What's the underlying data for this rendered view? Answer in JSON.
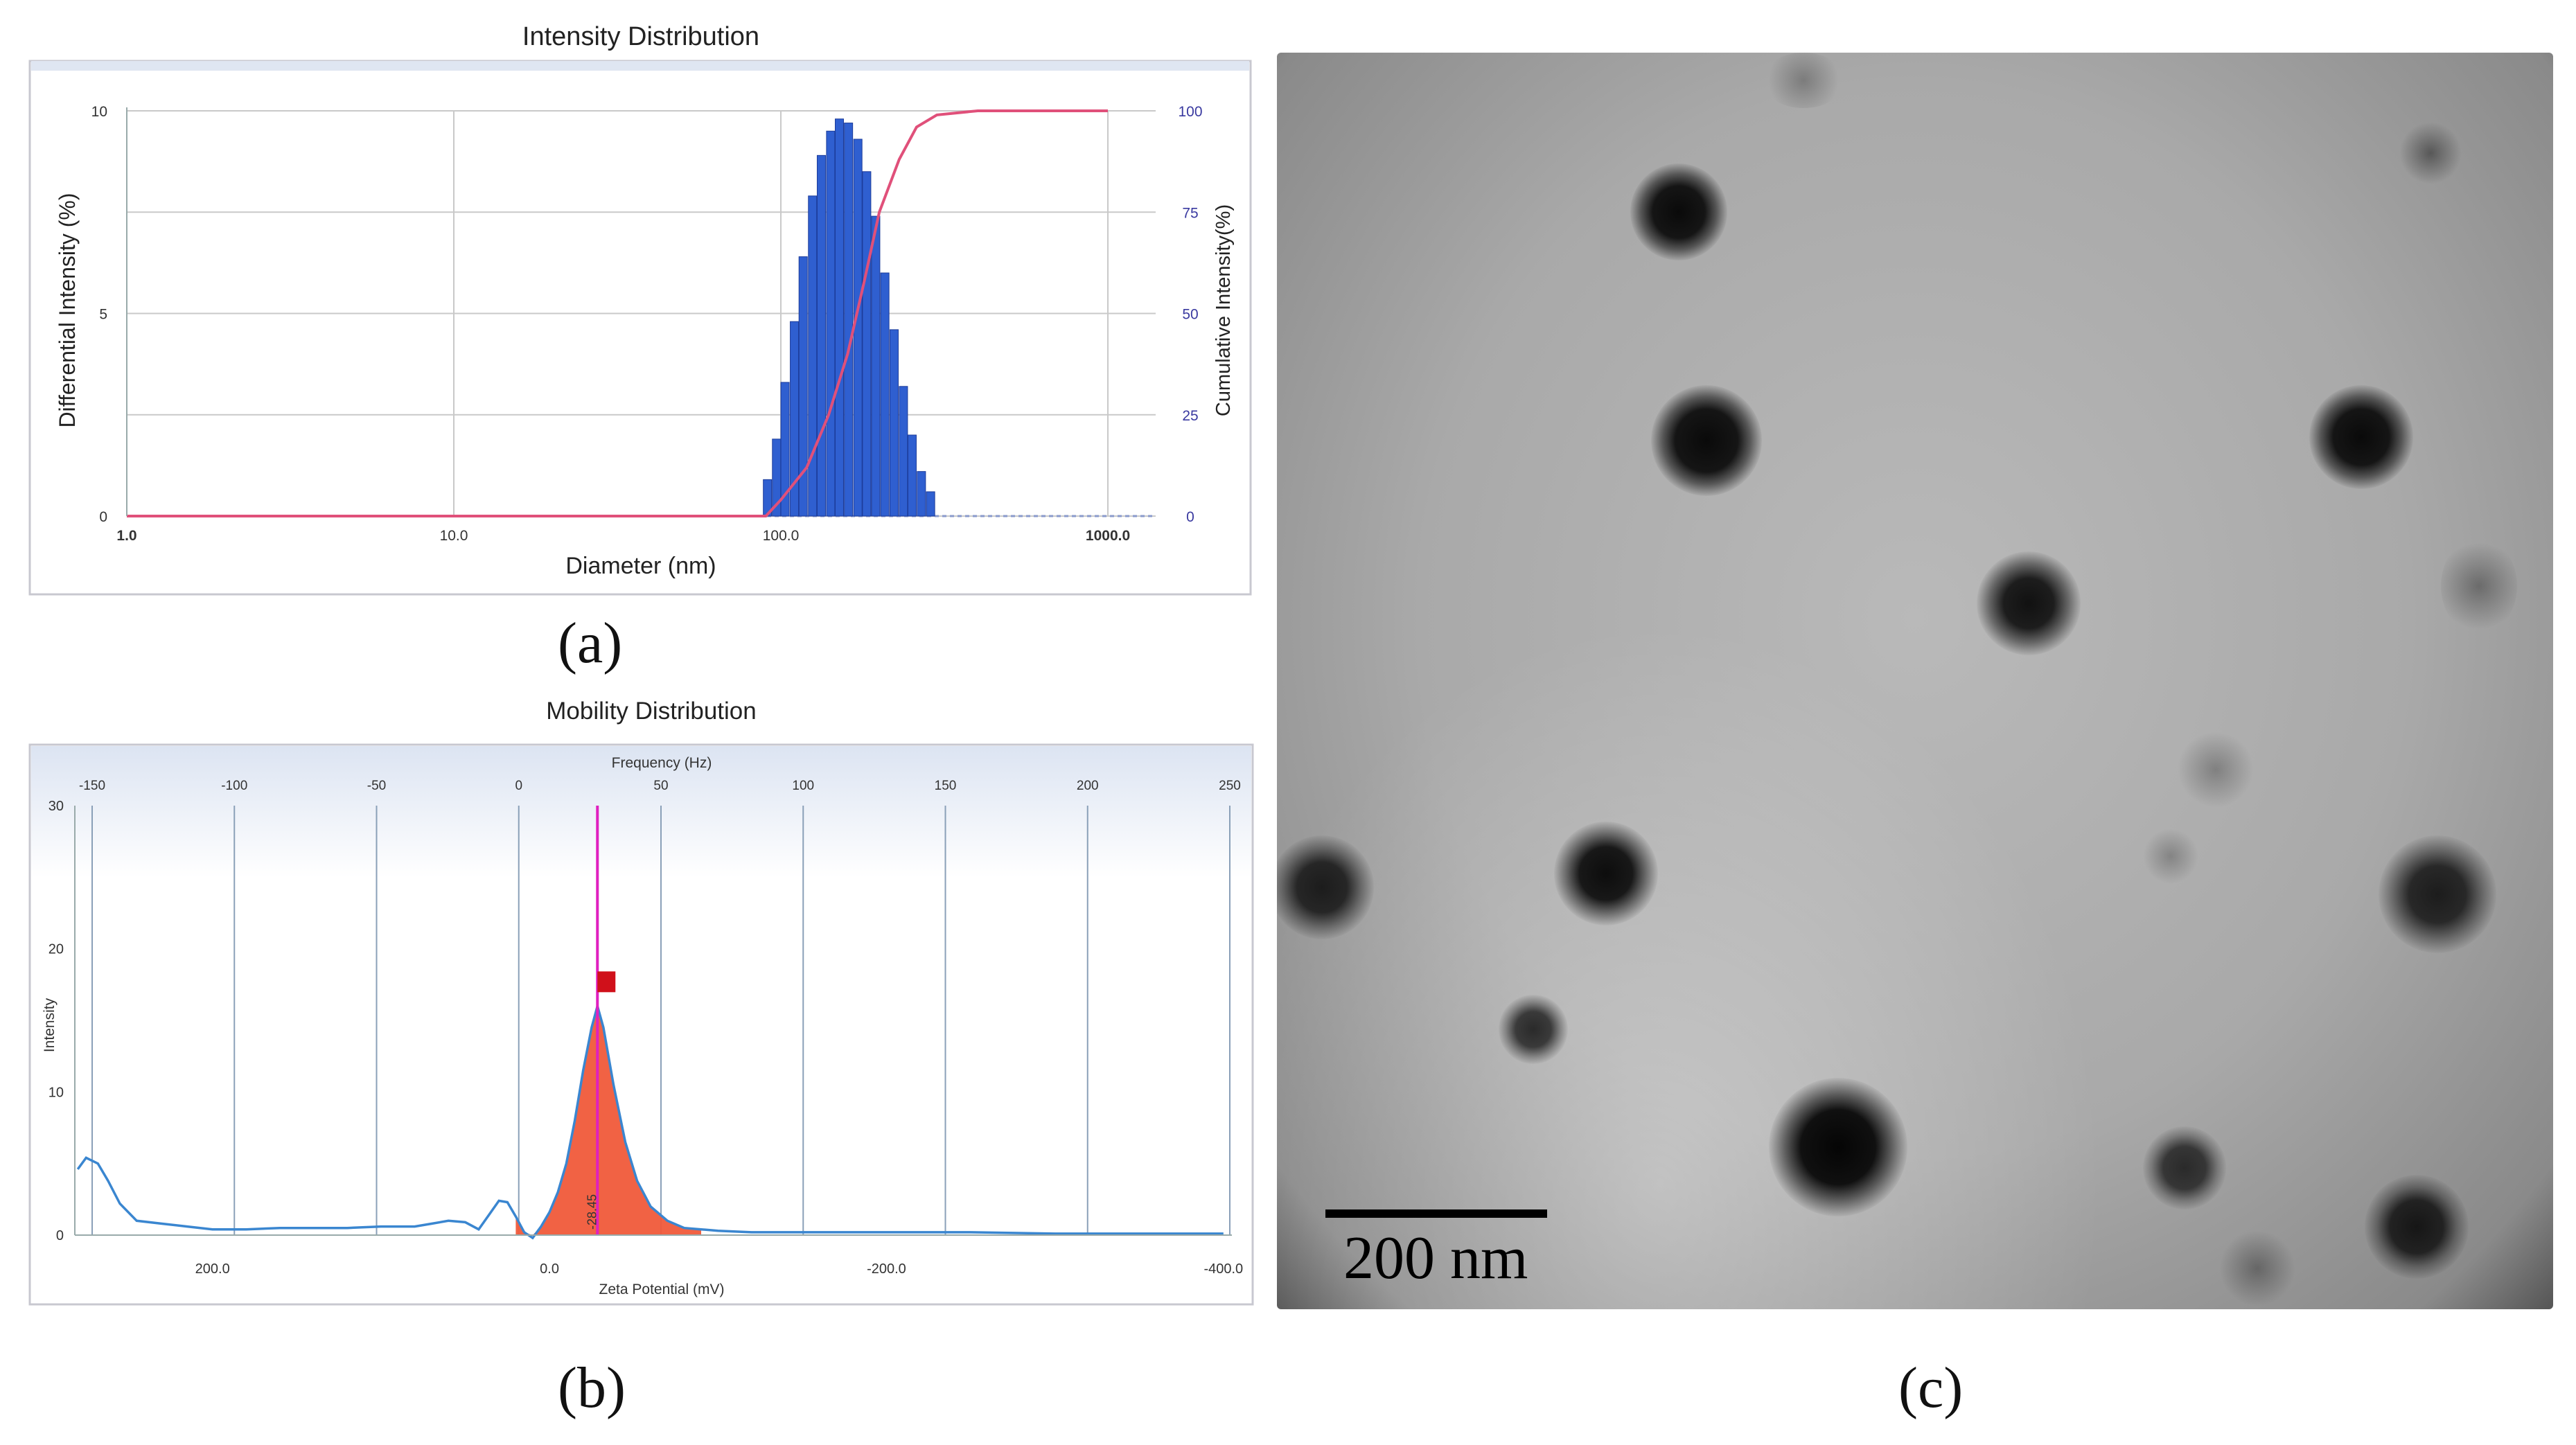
{
  "panel_labels": {
    "a": "(a)",
    "b": "(b)",
    "c": "(c)"
  },
  "scale_bar": {
    "label": "200 nm"
  },
  "colors": {
    "bars": "#2f5fd0",
    "cumulative": "#e0507a",
    "peak_fill": "#f05a3a",
    "curve": "#3a86d0",
    "marker": "#d0101a",
    "peak_line": "#e020c0"
  },
  "chart_data": [
    {
      "type": "bar",
      "title": "Intensity Distribution",
      "xlabel": "Diameter (nm)",
      "ylabel": "Differential Intensity (%)",
      "y2label": "Cumulative Intensity(%)",
      "x_scale": "log",
      "xlim": [
        1.0,
        1400.0
      ],
      "ylim": [
        0,
        10
      ],
      "y2lim": [
        0,
        100
      ],
      "x_ticks": [
        "1.0",
        "10.0",
        "100.0",
        "1000.0"
      ],
      "y_ticks": [
        "0",
        "5",
        "10"
      ],
      "y2_ticks": [
        "0",
        "25",
        "50",
        "75",
        "100"
      ],
      "grid": true,
      "series": [
        {
          "kind": "bar",
          "x": [
            91,
            97,
            103,
            110,
            117,
            125,
            133,
            142,
            151,
            161,
            172,
            183,
            195,
            208,
            222,
            237,
            252,
            269,
            287
          ],
          "values": [
            0.9,
            1.9,
            3.3,
            4.8,
            6.4,
            7.9,
            8.9,
            9.5,
            9.8,
            9.7,
            9.3,
            8.5,
            7.4,
            6.0,
            4.6,
            3.2,
            2.0,
            1.1,
            0.6
          ]
        },
        {
          "kind": "line",
          "axis": "right",
          "x": [
            1.0,
            90,
            100,
            120,
            140,
            160,
            180,
            200,
            230,
            260,
            300,
            400,
            1000
          ],
          "values": [
            0,
            0,
            4,
            12,
            25,
            40,
            58,
            75,
            88,
            96,
            99,
            100,
            100
          ]
        }
      ]
    },
    {
      "type": "line",
      "title": "Mobility Distribution",
      "top_axis_label": "Frequency (Hz)",
      "top_ticks": [
        "-150",
        "-100",
        "-50",
        "0",
        "50",
        "100",
        "150",
        "200",
        "250"
      ],
      "top_xlim": [
        -150,
        250
      ],
      "xlabel": "Zeta Potential (mV)",
      "x_ticks": [
        {
          "label": "200.0",
          "value": 200
        },
        {
          "label": "0.0",
          "value": 0
        },
        {
          "label": "-200.0",
          "value": -200
        },
        {
          "label": "-400.0",
          "value": -400
        }
      ],
      "xlim": [
        285,
        -405
      ],
      "ylabel": "Intensity",
      "ylim": [
        0,
        30
      ],
      "y_ticks": [
        "0",
        "10",
        "20",
        "30"
      ],
      "peak": {
        "label": "-28.45",
        "x": -28.45,
        "y": 16
      },
      "grid": true,
      "series": [
        {
          "x": [
            280,
            275,
            268,
            262,
            255,
            245,
            230,
            215,
            200,
            180,
            160,
            140,
            120,
            100,
            90,
            80,
            70,
            60,
            50,
            42,
            36,
            30,
            25,
            20,
            15,
            10,
            5,
            0,
            -5,
            -10,
            -15,
            -20,
            -25,
            -28.45,
            -32,
            -38,
            -45,
            -52,
            -60,
            -70,
            -80,
            -90,
            -100,
            -120,
            -150,
            -200,
            -250,
            -300,
            -350,
            -400
          ],
          "values": [
            4.6,
            5.4,
            5.0,
            3.8,
            2.2,
            1.0,
            0.8,
            0.6,
            0.4,
            0.4,
            0.5,
            0.5,
            0.5,
            0.6,
            0.6,
            0.6,
            0.8,
            1.0,
            0.9,
            0.4,
            1.4,
            2.4,
            2.3,
            1.3,
            0.2,
            -0.2,
            0.6,
            1.6,
            3.0,
            5.0,
            8.0,
            11.5,
            14.5,
            16.0,
            14.5,
            10.5,
            6.5,
            3.8,
            2.0,
            1.0,
            0.5,
            0.4,
            0.3,
            0.2,
            0.2,
            0.2,
            0.2,
            0.1,
            0.1,
            0.1
          ]
        }
      ]
    }
  ]
}
